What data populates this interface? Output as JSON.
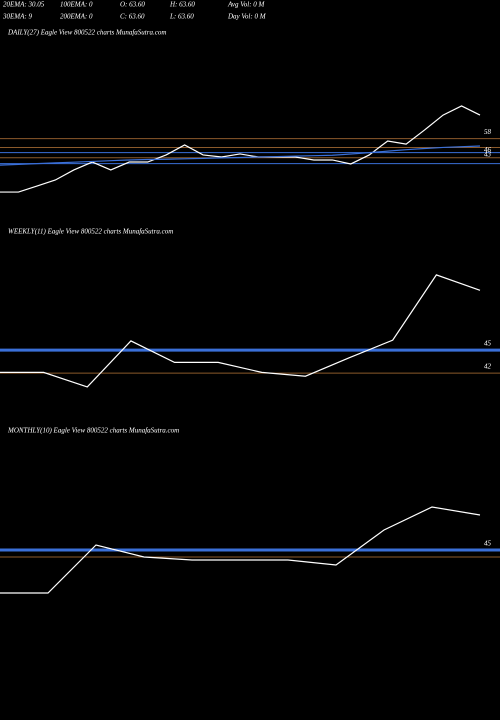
{
  "header": {
    "row1": [
      "20EMA: 30.05",
      "100EMA: 0",
      "O: 63.60",
      "H: 63.60",
      "Avg Vol: 0  M"
    ],
    "row2": [
      "30EMA: 9",
      "200EMA: 0",
      "C: 63.60",
      "L: 63.60",
      "Day Vol: 0  M"
    ]
  },
  "chart_data": [
    {
      "type": "line",
      "title": "DAILY(27) Eagle  View  800522  charts MunafaSutra.com",
      "ylim": [
        0,
        125
      ],
      "yticks": [
        58,
        46,
        43
      ],
      "hlines": [
        {
          "value": 58,
          "color": "#8b5a2b",
          "width": 1
        },
        {
          "value": 52,
          "color": "#8b5a2b",
          "width": 1
        },
        {
          "value": 48.5,
          "color": "#3a6fd8",
          "width": 1
        },
        {
          "value": 45,
          "color": "#8b5a2b",
          "width": 1
        },
        {
          "value": 41,
          "color": "#3a6fd8",
          "width": 1
        }
      ],
      "x": [
        0,
        1,
        2,
        3,
        4,
        5,
        6,
        7,
        8,
        9,
        10,
        11,
        12,
        13,
        14,
        15,
        16,
        17,
        18,
        19,
        20,
        21,
        22,
        23,
        24,
        25,
        26
      ],
      "series": [
        {
          "name": "Price",
          "color": "#ffffff",
          "values": [
            21.7,
            21.7,
            25.8,
            29.9,
            36.7,
            42.1,
            36.7,
            42.1,
            42.1,
            46.9,
            53.7,
            46.9,
            45.5,
            47.6,
            45.5,
            45.5,
            45.5,
            43.5,
            43.5,
            40.8,
            46.9,
            56.4,
            54.3,
            63.9,
            74,
            80.2,
            74
          ]
        },
        {
          "name": "EMA",
          "color": "#3a6fd8",
          "values": [
            40,
            40.5,
            41,
            41.5,
            42,
            42.5,
            43,
            43.5,
            43.8,
            44,
            44.3,
            44.6,
            44.9,
            45.2,
            45.5,
            45.8,
            46.1,
            46.4,
            46.7,
            47.5,
            48.5,
            49.5,
            50.5,
            51.3,
            52,
            52.5,
            53
          ]
        }
      ]
    },
    {
      "type": "line",
      "title": "WEEKLY(11) Eagle  View  800522  charts MunafaSutra.com",
      "ylim": [
        38.5,
        60
      ],
      "yticks": [
        45,
        42
      ],
      "hlines": [
        {
          "value": 45,
          "color": "#3a6fd8",
          "width": 3
        },
        {
          "value": 42,
          "color": "#8b5a2b",
          "width": 1
        }
      ],
      "x": [
        0,
        1,
        2,
        3,
        4,
        5,
        6,
        7,
        8,
        9,
        10,
        11
      ],
      "series": [
        {
          "name": "Price",
          "color": "#ffffff",
          "values": [
            42.1,
            42.1,
            40.2,
            46.2,
            43.4,
            43.4,
            42.1,
            41.6,
            44,
            46.3,
            54.8,
            52.8
          ]
        }
      ]
    },
    {
      "type": "line",
      "title": "MONTHLY(10) Eagle  View  800522  charts MunafaSutra.com",
      "ylim": [
        35,
        68
      ],
      "yticks": [
        45
      ],
      "hlines": [
        {
          "value": 45,
          "color": "#3a6fd8",
          "width": 3
        },
        {
          "value": 43.6,
          "color": "#8b5a2b",
          "width": 1
        }
      ],
      "x": [
        0,
        1,
        2,
        3,
        4,
        5,
        6,
        7,
        8,
        9,
        10
      ],
      "series": [
        {
          "name": "Price",
          "color": "#ffffff",
          "values": [
            36.4,
            36.4,
            46,
            43.6,
            43,
            43,
            43,
            42,
            49,
            53.6,
            52
          ]
        }
      ]
    }
  ]
}
